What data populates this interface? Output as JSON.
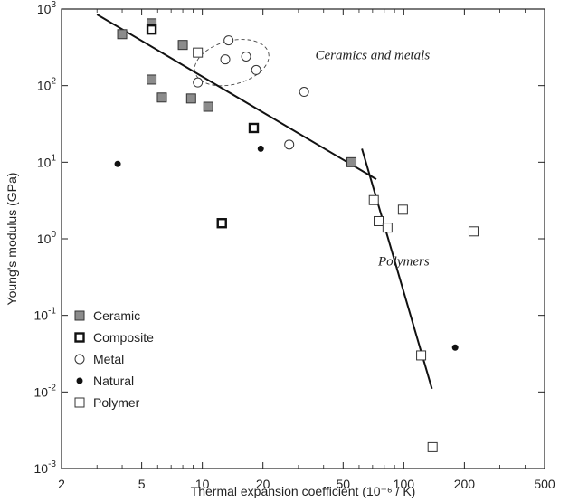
{
  "chart_data": {
    "type": "scatter",
    "title": "",
    "xlabel": "Thermal expansion coefficient  (10⁻⁶ / K)",
    "ylabel": "Young's modulus  (GPa)",
    "xscale": "log",
    "yscale": "log",
    "xlim": [
      2,
      500
    ],
    "ylim": [
      0.001,
      1000
    ],
    "x_ticks": [
      2,
      5,
      10,
      20,
      50,
      100,
      200,
      500
    ],
    "x_tick_labels": [
      "2",
      "5",
      "10",
      "20",
      "50",
      "100",
      "200",
      "500"
    ],
    "y_ticks": [
      0.001,
      0.01,
      0.1,
      1,
      10,
      100,
      1000
    ],
    "y_tick_labels": [
      {
        "base": "10",
        "exp": "-3"
      },
      {
        "base": "10",
        "exp": "-2"
      },
      {
        "base": "10",
        "exp": "-1"
      },
      {
        "base": "10",
        "exp": "0"
      },
      {
        "base": "10",
        "exp": "1"
      },
      {
        "base": "10",
        "exp": "2"
      },
      {
        "base": "10",
        "exp": "3"
      }
    ],
    "grid": false,
    "legend_position": "bottom-left",
    "series": [
      {
        "name": "Ceramic",
        "marker": "filled-square",
        "color": "#888888",
        "points": [
          [
            4,
            470
          ],
          [
            5.6,
            650
          ],
          [
            5.6,
            120
          ],
          [
            6.3,
            70
          ],
          [
            8,
            340
          ],
          [
            8.8,
            68
          ],
          [
            10.7,
            53
          ],
          [
            55,
            10
          ]
        ]
      },
      {
        "name": "Composite",
        "marker": "bold-square",
        "color": "#111111",
        "points": [
          [
            5.6,
            540
          ],
          [
            12.5,
            1.6
          ],
          [
            18,
            28
          ]
        ]
      },
      {
        "name": "Metal",
        "marker": "open-circle",
        "color": "#333333",
        "points": [
          [
            9.5,
            110
          ],
          [
            13.5,
            390
          ],
          [
            13,
            220
          ],
          [
            16.5,
            240
          ],
          [
            18.5,
            160
          ],
          [
            27,
            17
          ],
          [
            32,
            83
          ]
        ]
      },
      {
        "name": "Natural",
        "marker": "dot",
        "color": "#111111",
        "points": [
          [
            3.8,
            9.5
          ],
          [
            19.5,
            15
          ],
          [
            180,
            0.038
          ]
        ]
      },
      {
        "name": "Polymer",
        "marker": "open-square",
        "color": "#333333",
        "points": [
          [
            9.5,
            270
          ],
          [
            71,
            3.2
          ],
          [
            75,
            1.7
          ],
          [
            83,
            1.4
          ],
          [
            99,
            2.4
          ],
          [
            122,
            0.03
          ],
          [
            139,
            0.0019
          ],
          [
            222,
            1.25
          ]
        ]
      }
    ],
    "lines": [
      {
        "label": "Ceramics and metals",
        "from": [
          3,
          850
        ],
        "to": [
          73,
          6
        ]
      },
      {
        "label": "Polymers",
        "from": [
          62,
          15
        ],
        "to": [
          138,
          0.011
        ]
      }
    ],
    "annotations": [
      {
        "text": "Ceramics and metals",
        "x": 70,
        "y": 220
      },
      {
        "text": "Polymers",
        "x": 100,
        "y": 0.45
      }
    ]
  }
}
